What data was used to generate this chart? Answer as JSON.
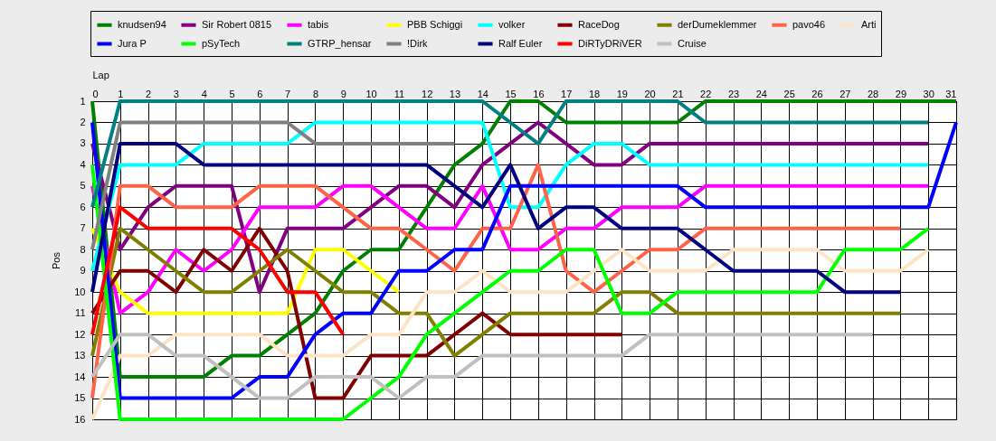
{
  "chart_data": {
    "type": "line",
    "xlabel": "Lap",
    "ylabel": "Pos",
    "x": [
      0,
      1,
      2,
      3,
      4,
      5,
      6,
      7,
      8,
      9,
      10,
      11,
      12,
      13,
      14,
      15,
      16,
      17,
      18,
      19,
      20,
      21,
      22,
      23,
      24,
      25,
      26,
      27,
      28,
      29,
      30,
      31
    ],
    "xlim": [
      0,
      31
    ],
    "xticks": [
      0,
      1,
      2,
      3,
      4,
      5,
      6,
      7,
      8,
      9,
      10,
      11,
      12,
      13,
      14,
      15,
      16,
      17,
      18,
      19,
      20,
      21,
      22,
      23,
      24,
      25,
      26,
      27,
      28,
      29,
      30,
      31
    ],
    "ylim": [
      16,
      1
    ],
    "yticks": [
      1,
      2,
      3,
      4,
      5,
      6,
      7,
      8,
      9,
      10,
      11,
      12,
      13,
      14,
      15,
      16
    ],
    "grid": true,
    "legend": "top",
    "line_style": "solid",
    "series": [
      {
        "name": "knudsen94",
        "color": "#008000",
        "values": [
          1,
          14,
          14,
          14,
          14,
          13,
          13,
          12,
          11,
          9,
          8,
          8,
          6,
          4,
          3,
          1,
          1,
          2,
          2,
          2,
          2,
          2,
          1,
          1,
          1,
          1,
          1,
          1,
          1,
          1,
          1,
          1
        ]
      },
      {
        "name": "Sir Robert 0815",
        "color": "#800080",
        "values": [
          3,
          8,
          6,
          5,
          5,
          5,
          10,
          7,
          7,
          7,
          6,
          5,
          5,
          6,
          4,
          3,
          2,
          3,
          4,
          4,
          3,
          3,
          3,
          3,
          3,
          3,
          3,
          3,
          3,
          3,
          3,
          null
        ]
      },
      {
        "name": "tabis",
        "color": "#ff00ff",
        "values": [
          5,
          11,
          10,
          8,
          9,
          8,
          6,
          6,
          6,
          5,
          5,
          6,
          7,
          7,
          5,
          8,
          8,
          7,
          7,
          6,
          6,
          6,
          5,
          5,
          5,
          5,
          5,
          5,
          5,
          5,
          5,
          null
        ]
      },
      {
        "name": "PBB Schiggi",
        "color": "#ffff00",
        "values": [
          7,
          10,
          11,
          11,
          11,
          11,
          11,
          11,
          8,
          8,
          9,
          10,
          null,
          null,
          null,
          null,
          null,
          null,
          null,
          null,
          null,
          null,
          null,
          null,
          null,
          null,
          null,
          null,
          null,
          null,
          null,
          null
        ]
      },
      {
        "name": "volker",
        "color": "#00ffff",
        "values": [
          9,
          4,
          4,
          4,
          3,
          3,
          3,
          3,
          2,
          2,
          2,
          2,
          2,
          2,
          2,
          6,
          6,
          4,
          3,
          3,
          4,
          4,
          4,
          4,
          4,
          4,
          4,
          4,
          4,
          4,
          4,
          null
        ]
      },
      {
        "name": "RaceDog",
        "color": "#800000",
        "values": [
          11,
          9,
          9,
          10,
          8,
          9,
          7,
          9,
          15,
          15,
          13,
          13,
          13,
          12,
          11,
          12,
          12,
          12,
          12,
          12,
          null,
          null,
          null,
          null,
          null,
          null,
          null,
          null,
          null,
          null,
          null,
          null
        ]
      },
      {
        "name": "derDumeklemmer",
        "color": "#808000",
        "values": [
          13,
          7,
          8,
          9,
          10,
          10,
          9,
          8,
          9,
          10,
          10,
          11,
          11,
          13,
          12,
          11,
          11,
          11,
          11,
          10,
          10,
          11,
          11,
          11,
          11,
          11,
          11,
          11,
          11,
          11,
          null,
          null
        ]
      },
      {
        "name": "pavo46",
        "color": "#ff6347",
        "values": [
          15,
          5,
          5,
          6,
          6,
          6,
          5,
          5,
          5,
          6,
          7,
          7,
          8,
          9,
          7,
          7,
          4,
          9,
          10,
          9,
          8,
          8,
          7,
          7,
          7,
          7,
          7,
          7,
          7,
          7,
          null,
          null
        ]
      },
      {
        "name": "Arti",
        "color": "#ffe4c4",
        "values": [
          16,
          13,
          13,
          12,
          12,
          12,
          12,
          13,
          13,
          13,
          12,
          12,
          10,
          10,
          9,
          10,
          10,
          10,
          9,
          8,
          9,
          9,
          9,
          8,
          8,
          8,
          8,
          9,
          9,
          9,
          8,
          null
        ]
      },
      {
        "name": "Jura P",
        "color": "#0000ff",
        "values": [
          2,
          15,
          15,
          15,
          15,
          15,
          14,
          14,
          12,
          11,
          11,
          9,
          9,
          8,
          8,
          5,
          5,
          5,
          5,
          5,
          5,
          5,
          6,
          6,
          6,
          6,
          6,
          6,
          6,
          6,
          6,
          2
        ]
      },
      {
        "name": "pSyTech",
        "color": "#00ff00",
        "values": [
          4,
          16,
          16,
          16,
          16,
          16,
          16,
          16,
          16,
          16,
          15,
          14,
          12,
          11,
          10,
          9,
          9,
          8,
          8,
          11,
          11,
          10,
          10,
          10,
          10,
          10,
          10,
          8,
          8,
          8,
          7,
          null
        ]
      },
      {
        "name": "GTRP_hensar",
        "color": "#008080",
        "values": [
          6,
          1,
          1,
          1,
          1,
          1,
          1,
          1,
          1,
          1,
          1,
          1,
          1,
          1,
          1,
          2,
          3,
          1,
          1,
          1,
          1,
          1,
          2,
          2,
          2,
          2,
          2,
          2,
          2,
          2,
          2,
          null
        ]
      },
      {
        "name": "!Dirk",
        "color": "#808080",
        "values": [
          8,
          2,
          2,
          2,
          2,
          2,
          2,
          2,
          3,
          3,
          3,
          3,
          3,
          3,
          null,
          null,
          null,
          null,
          null,
          null,
          null,
          null,
          null,
          null,
          null,
          null,
          null,
          null,
          null,
          null,
          null,
          null
        ]
      },
      {
        "name": "Ralf Euler",
        "color": "#000080",
        "values": [
          10,
          3,
          3,
          3,
          4,
          4,
          4,
          4,
          4,
          4,
          4,
          4,
          4,
          5,
          6,
          4,
          7,
          6,
          6,
          7,
          7,
          7,
          8,
          9,
          9,
          9,
          9,
          10,
          10,
          10,
          null,
          null
        ]
      },
      {
        "name": "DiRTyDRiVER",
        "color": "#ff0000",
        "values": [
          12,
          6,
          7,
          7,
          7,
          7,
          8,
          10,
          10,
          12,
          null,
          null,
          null,
          null,
          null,
          null,
          null,
          null,
          null,
          null,
          null,
          null,
          null,
          null,
          null,
          null,
          null,
          null,
          null,
          null,
          null,
          null
        ]
      },
      {
        "name": "Cruise",
        "color": "#c0c0c0",
        "values": [
          14,
          12,
          12,
          13,
          13,
          14,
          15,
          15,
          14,
          14,
          14,
          15,
          14,
          14,
          13,
          13,
          13,
          13,
          13,
          13,
          12,
          12,
          12,
          12,
          12,
          12,
          12,
          12,
          12,
          null,
          null,
          null
        ]
      }
    ]
  }
}
